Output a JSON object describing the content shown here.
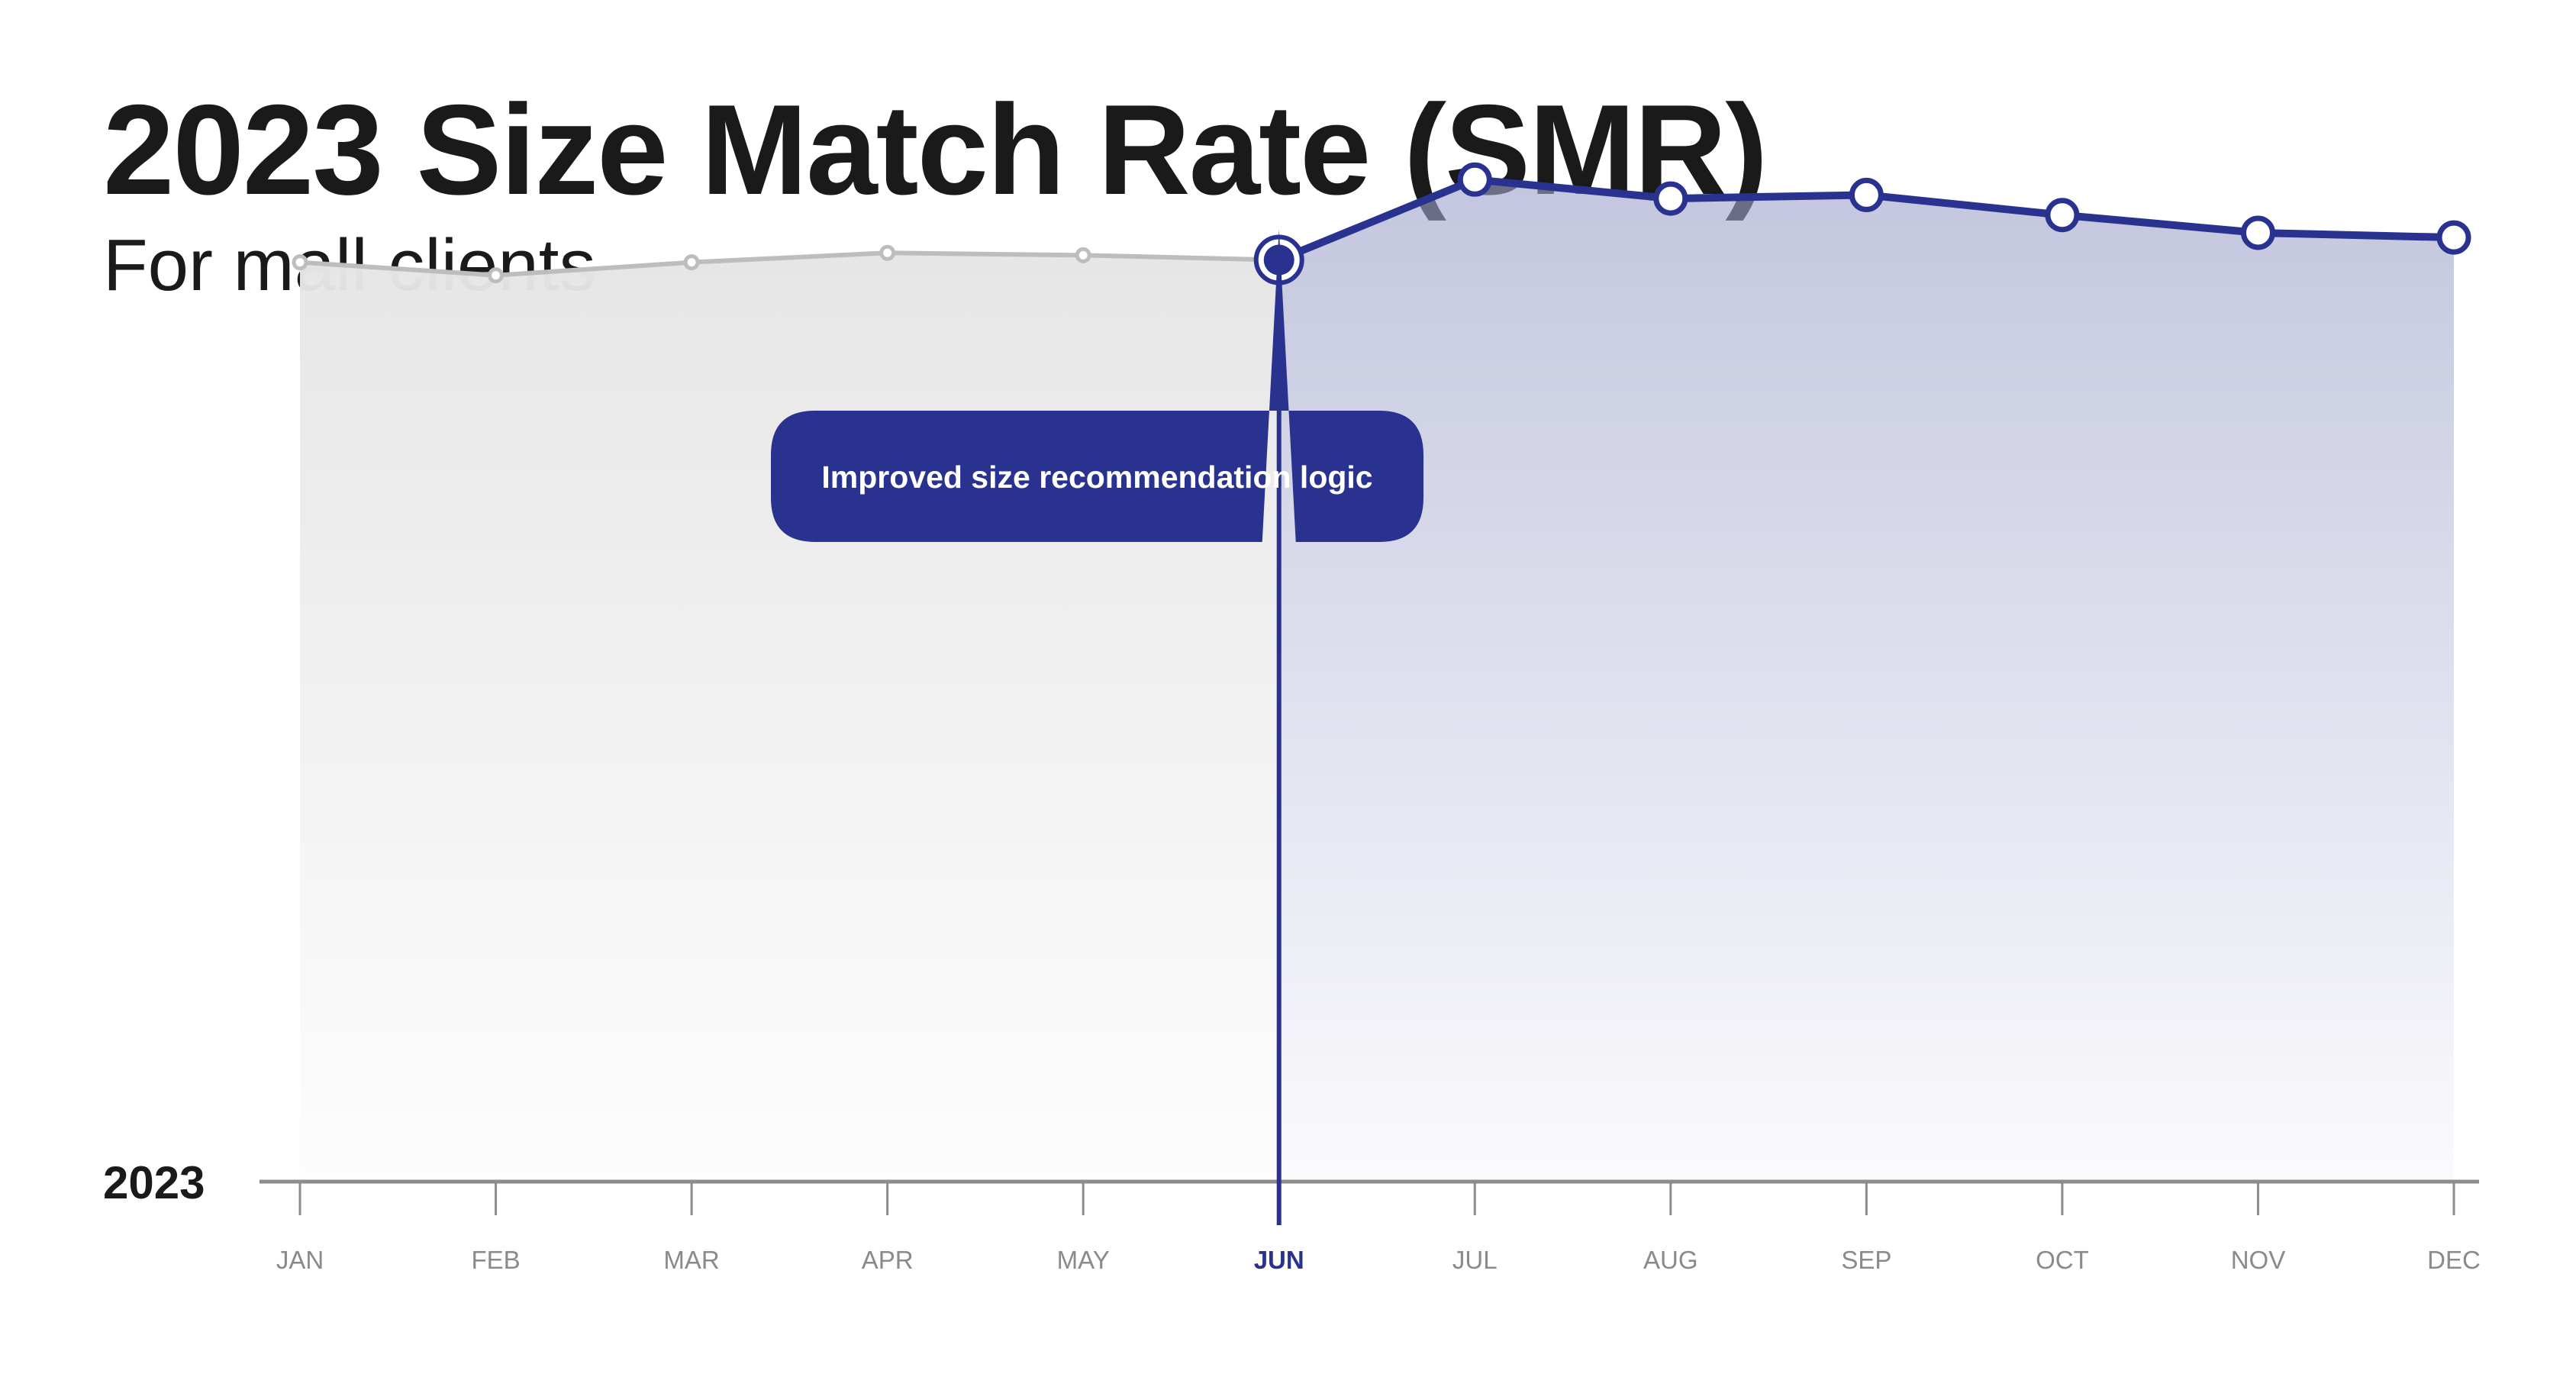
{
  "header": {
    "title": "2023 Size Match Rate (SMR)",
    "subtitle": "For mall clients"
  },
  "colors": {
    "before_line": "#bdbdbd",
    "before_fill": "#e6e6e6",
    "after_line": "#29338f",
    "after_fill": "#9fa3cb",
    "axis": "#8c8c8c",
    "callout": "#29338f"
  },
  "chart_data": {
    "type": "line",
    "title": "2023 Size Match Rate (SMR)",
    "subtitle": "For mall clients",
    "year_label": "2023",
    "categories": [
      "JAN",
      "FEB",
      "MAR",
      "APR",
      "MAY",
      "JUN",
      "JUL",
      "AUG",
      "SEP",
      "OCT",
      "NOV",
      "DEC"
    ],
    "values": [
      77.8,
      76.7,
      77.8,
      78.6,
      78.4,
      78.0,
      84.8,
      83.2,
      83.5,
      81.8,
      80.3,
      79.9
    ],
    "highlight_index": 5,
    "annotation": {
      "text": "Improved size recommendation logic",
      "category": "JUN"
    },
    "ylim": [
      0,
      100
    ],
    "grid": false,
    "legend": "none"
  }
}
